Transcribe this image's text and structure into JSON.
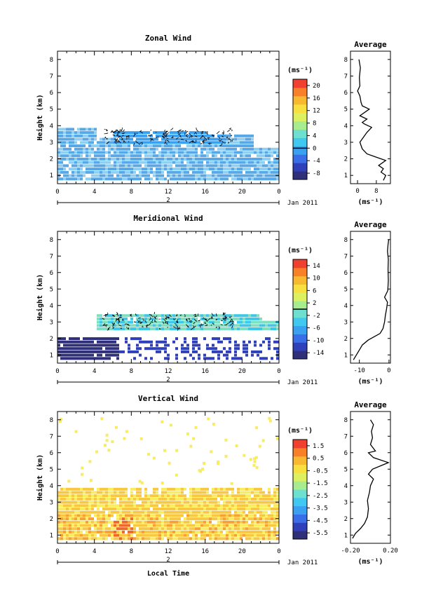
{
  "chart_data": [
    {
      "type": "heatmap",
      "id": "zonal",
      "title": "Zonal Wind",
      "ylabel": "Height (km)",
      "units_label": "(ms⁻¹)",
      "x_ticks": [
        "0",
        "4",
        "8",
        "12",
        "16",
        "20",
        "0"
      ],
      "date_label": "2",
      "month_label": "Jan 2011",
      "y_ticks": [
        "1",
        "2",
        "3",
        "4",
        "5",
        "6",
        "7",
        "8"
      ],
      "colorbar_ticks": [
        "20",
        "16",
        "12",
        "8",
        "4",
        "0",
        "-4",
        "-8"
      ],
      "colorbar_range": [
        -10,
        22
      ],
      "zero_line_value": 0,
      "field_color": "#58a8e8",
      "field_color_light": "#8fd0f2",
      "average": {
        "title": "Average",
        "xlabel": "(ms⁻¹)",
        "x_ticks": [
          "0",
          "8"
        ],
        "x_range": [
          -3,
          14
        ],
        "profile": [
          [
            11,
            0.7
          ],
          [
            12,
            1.0
          ],
          [
            10,
            1.2
          ],
          [
            11,
            1.4
          ],
          [
            9,
            1.6
          ],
          [
            12,
            1.9
          ],
          [
            8,
            2.1
          ],
          [
            4,
            2.3
          ],
          [
            2,
            2.6
          ],
          [
            1,
            3.0
          ],
          [
            2.5,
            3.3
          ],
          [
            4,
            3.6
          ],
          [
            6,
            3.9
          ],
          [
            3,
            4.1
          ],
          [
            2,
            4.2
          ],
          [
            4,
            4.4
          ],
          [
            1,
            4.6
          ],
          [
            5,
            5.0
          ],
          [
            2,
            5.2
          ],
          [
            1.5,
            5.4
          ],
          [
            1,
            5.8
          ],
          [
            0,
            6.1
          ],
          [
            1,
            6.4
          ],
          [
            0.8,
            6.9
          ],
          [
            1.2,
            7.5
          ],
          [
            0.6,
            8.0
          ]
        ]
      }
    },
    {
      "type": "heatmap",
      "id": "meridional",
      "title": "Meridional Wind",
      "ylabel": "Height (km)",
      "units_label": "(ms⁻¹)",
      "x_ticks": [
        "0",
        "4",
        "8",
        "12",
        "16",
        "20",
        "0"
      ],
      "date_label": "2",
      "month_label": "Jan 2011",
      "y_ticks": [
        "1",
        "2",
        "3",
        "4",
        "5",
        "6",
        "7",
        "8"
      ],
      "colorbar_ticks": [
        "14",
        "10",
        "6",
        "2",
        "-2",
        "-6",
        "-10",
        "-14"
      ],
      "colorbar_range": [
        -16,
        16
      ],
      "zero_line_value": 0,
      "field_color": "#7ee0c0",
      "field_color_light": "#3ec8e8",
      "average": {
        "title": "Average",
        "xlabel": "(ms⁻¹)",
        "x_ticks": [
          "-10",
          "0"
        ],
        "x_range": [
          -13,
          0.5
        ],
        "profile": [
          [
            -12,
            0.7
          ],
          [
            -11,
            1.0
          ],
          [
            -10,
            1.3
          ],
          [
            -9,
            1.6
          ],
          [
            -7,
            1.9
          ],
          [
            -3,
            2.3
          ],
          [
            -2,
            2.6
          ],
          [
            -1.5,
            3.0
          ],
          [
            -1.2,
            3.4
          ],
          [
            -0.8,
            3.8
          ],
          [
            -0.5,
            4.2
          ],
          [
            -1.5,
            4.5
          ],
          [
            -0.4,
            4.9
          ],
          [
            -0.2,
            5.5
          ],
          [
            -0.3,
            6.2
          ],
          [
            -0.2,
            6.8
          ],
          [
            -0.5,
            7.3
          ],
          [
            -0.3,
            7.7
          ],
          [
            -0.1,
            8.0
          ]
        ]
      }
    },
    {
      "type": "heatmap",
      "id": "vertical",
      "title": "Vertical Wind",
      "ylabel": "Height (km)",
      "xlabel": "Local Time",
      "units_label": "(ms⁻¹)",
      "x_ticks": [
        "0",
        "4",
        "8",
        "12",
        "16",
        "20",
        "0"
      ],
      "date_label": "2",
      "month_label": "Jan 2011",
      "y_ticks": [
        "1",
        "2",
        "3",
        "4",
        "5",
        "6",
        "7",
        "8"
      ],
      "colorbar_ticks": [
        "1.5",
        "0.5",
        "-0.5",
        "-1.5",
        "-2.5",
        "-3.5",
        "-4.5",
        "-5.5"
      ],
      "colorbar_range": [
        -6,
        2
      ],
      "field_color": "#f8c840",
      "field_color_light": "#f8ec60",
      "average": {
        "title": "Average",
        "xlabel": "(ms⁻¹)",
        "x_ticks": [
          "-0.20",
          "0.20"
        ],
        "x_range": [
          -0.2,
          0.2
        ],
        "profile": [
          [
            -0.18,
            0.8
          ],
          [
            -0.15,
            1.1
          ],
          [
            -0.1,
            1.4
          ],
          [
            -0.06,
            1.7
          ],
          [
            -0.03,
            2.1
          ],
          [
            -0.02,
            2.6
          ],
          [
            -0.03,
            3.1
          ],
          [
            -0.01,
            3.6
          ],
          [
            0.0,
            4.0
          ],
          [
            0.03,
            4.4
          ],
          [
            -0.02,
            4.7
          ],
          [
            0.02,
            5.0
          ],
          [
            0.18,
            5.4
          ],
          [
            0.03,
            5.7
          ],
          [
            -0.02,
            6.0
          ],
          [
            0.05,
            6.1
          ],
          [
            0.0,
            6.5
          ],
          [
            0.02,
            6.9
          ],
          [
            0.01,
            7.3
          ],
          [
            0.03,
            7.7
          ],
          [
            0.0,
            8.0
          ]
        ]
      }
    }
  ]
}
